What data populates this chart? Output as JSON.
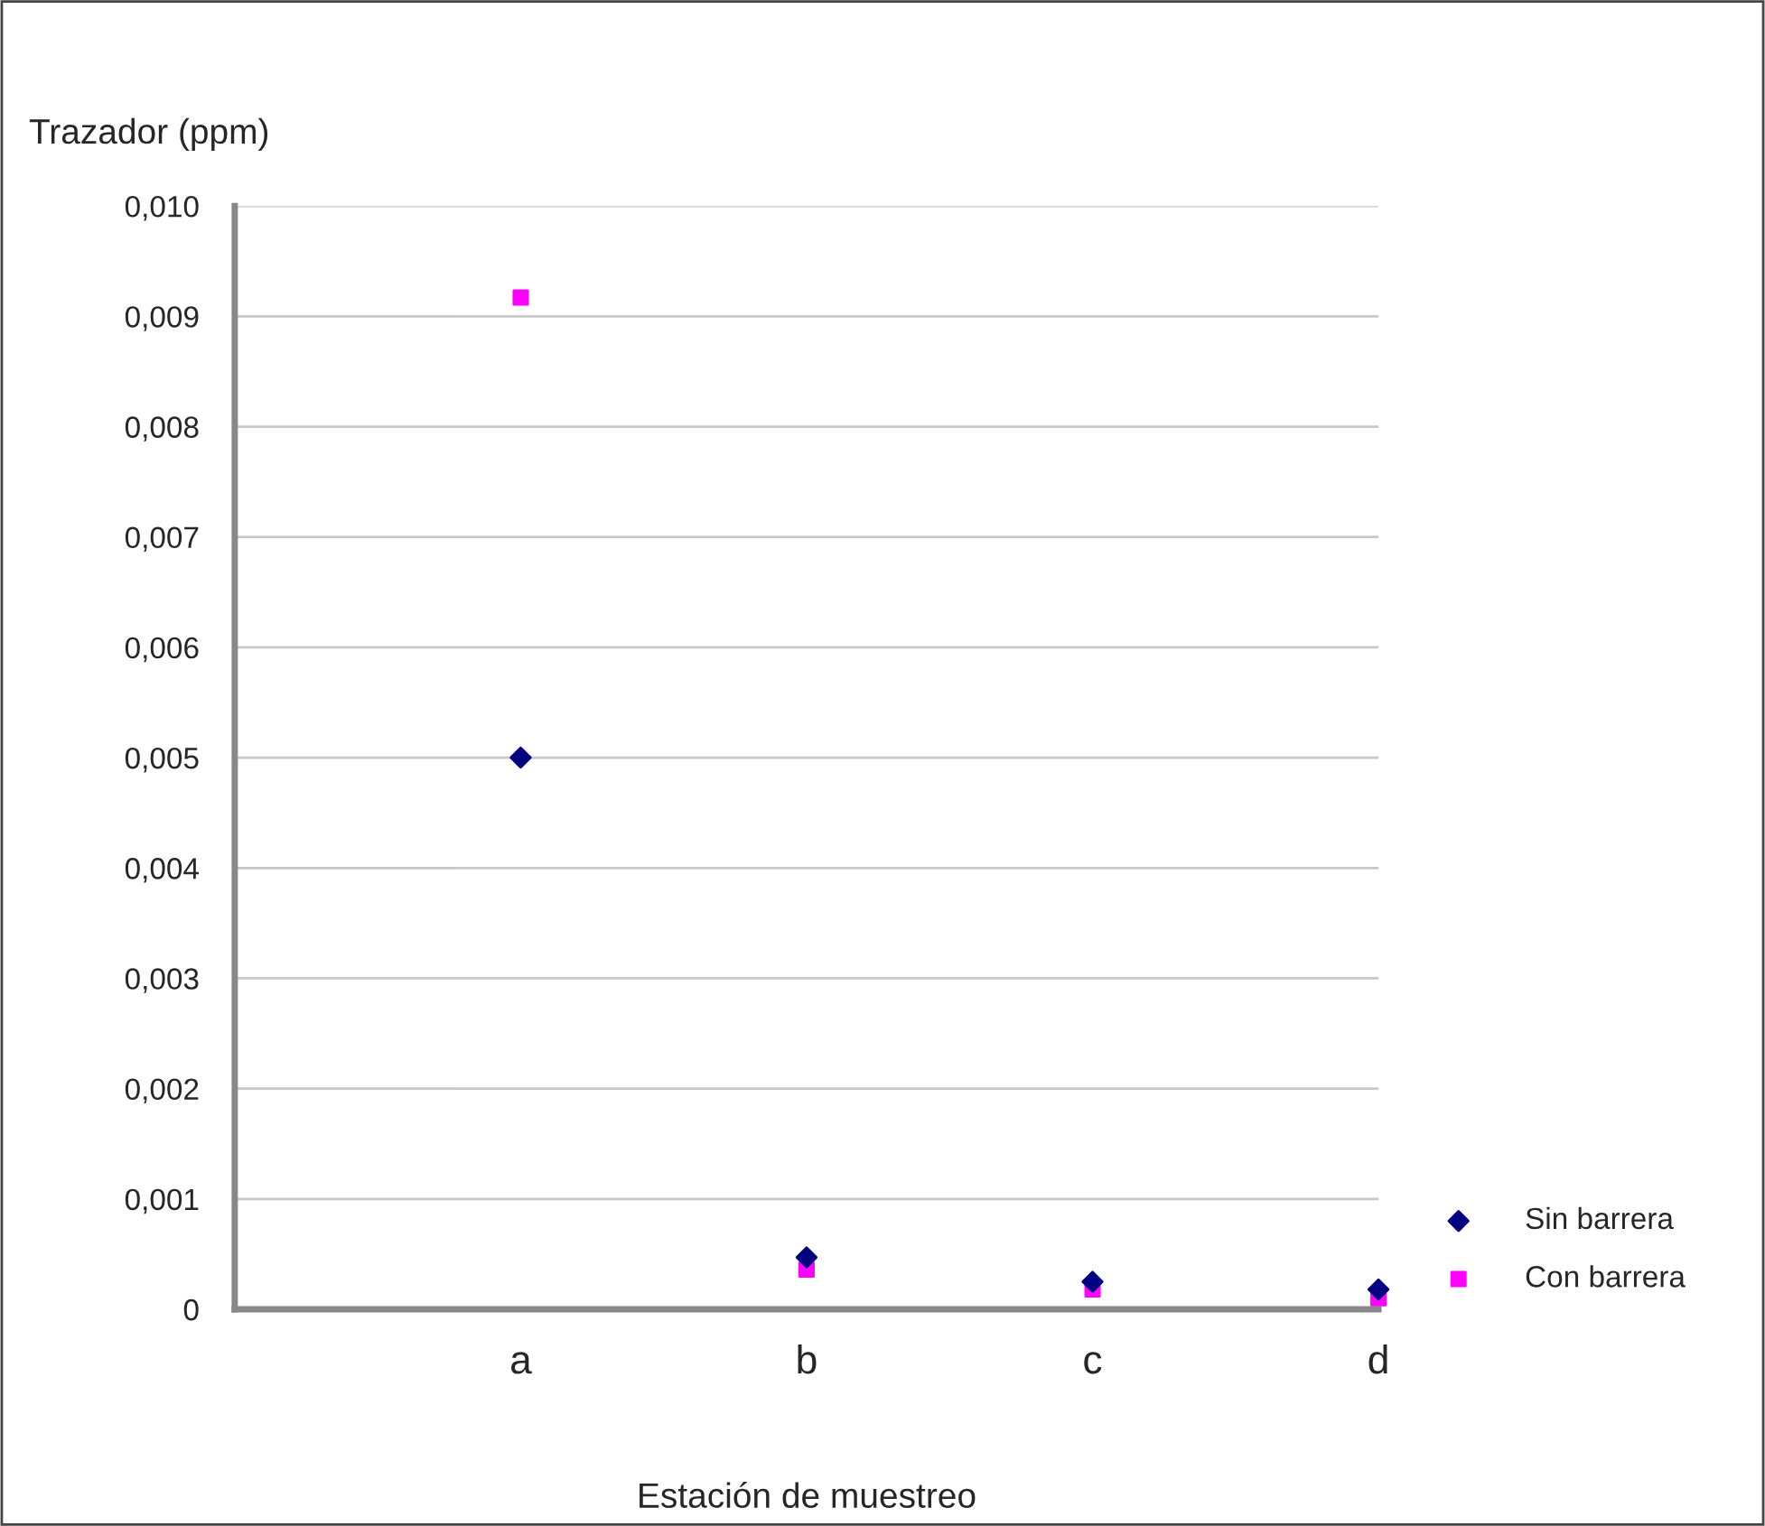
{
  "chart_data": {
    "type": "scatter",
    "ylabel": "Trazador (ppm)",
    "xlabel": "Estación de muestreo",
    "categories": [
      "a",
      "b",
      "c",
      "d"
    ],
    "series": [
      {
        "name": "Sin barrera",
        "color": "#000080",
        "marker": "diamond",
        "values": [
          0.005,
          0.00047,
          0.00025,
          0.00018
        ]
      },
      {
        "name": "Con barrera",
        "color": "#ff00ff",
        "marker": "square",
        "values": [
          0.00917,
          0.00036,
          0.00018,
          0.0001
        ]
      }
    ],
    "ylim": [
      0,
      0.01
    ],
    "yticks": [
      {
        "value": 0,
        "label": "0"
      },
      {
        "value": 0.001,
        "label": "0,001"
      },
      {
        "value": 0.002,
        "label": "0,002"
      },
      {
        "value": 0.003,
        "label": "0,003"
      },
      {
        "value": 0.004,
        "label": "0,004"
      },
      {
        "value": 0.005,
        "label": "0,005"
      },
      {
        "value": 0.006,
        "label": "0,006"
      },
      {
        "value": 0.007,
        "label": "0,007"
      },
      {
        "value": 0.008,
        "label": "0,008"
      },
      {
        "value": 0.009,
        "label": "0,009"
      },
      {
        "value": 0.01,
        "label": "0,010"
      }
    ],
    "grid": "y",
    "legend": "right"
  }
}
